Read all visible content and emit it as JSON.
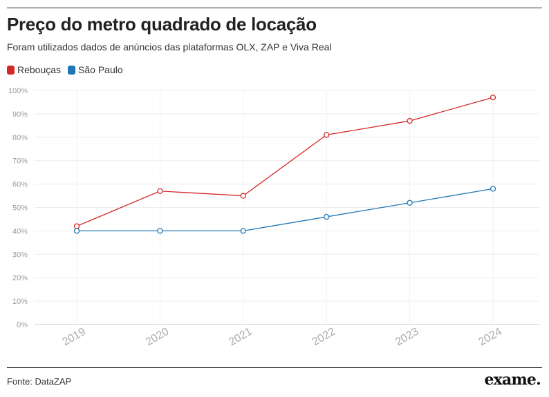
{
  "header": {
    "title": "Preço do metro quadrado de locação",
    "subtitle": "Foram utilizados dados de anúncios das plataformas OLX, ZAP e Viva Real"
  },
  "footer": {
    "source": "Fonte: DataZAP",
    "logo": "exame."
  },
  "chart_data": {
    "type": "line",
    "categories": [
      "2019",
      "2020",
      "2021",
      "2022",
      "2023",
      "2024"
    ],
    "ylim": [
      0,
      100
    ],
    "yticks": [
      "0%",
      "10%",
      "20%",
      "30%",
      "40%",
      "50%",
      "60%",
      "70%",
      "80%",
      "90%",
      "100%"
    ],
    "grid": true,
    "legend_position": "top-left",
    "series": [
      {
        "name": "Rebouças",
        "color": "#d62728",
        "values": [
          42,
          57,
          55,
          81,
          87,
          97
        ]
      },
      {
        "name": "São Paulo",
        "color": "#1f77b4",
        "values": [
          40,
          40,
          40,
          46,
          52,
          58
        ]
      }
    ]
  }
}
